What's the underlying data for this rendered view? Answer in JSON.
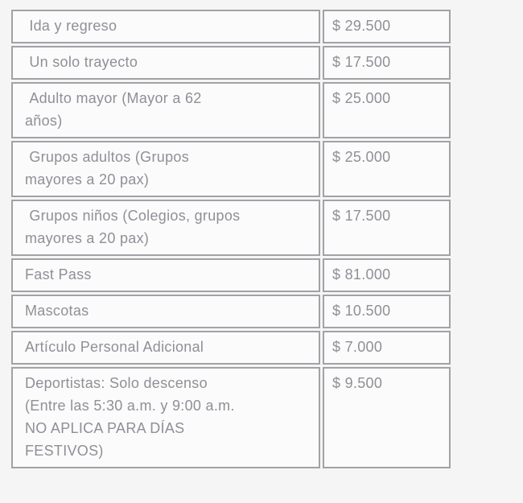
{
  "page": {
    "background_color": "#f5f5f6"
  },
  "fare_table": {
    "border_color": "#a2a2a6",
    "cell_background_color": "#fbfbfc",
    "text_color": "#8f8f96",
    "rows": [
      {
        "label": " Ida y regreso",
        "price": "$ 29.500"
      },
      {
        "label": " Un solo trayecto",
        "price": "$ 17.500"
      },
      {
        "label": " Adulto mayor (Mayor a 62\naños)",
        "price": "$ 25.000"
      },
      {
        "label": " Grupos adultos (Grupos\nmayores a 20 pax)",
        "price": "$ 25.000"
      },
      {
        "label": " Grupos niños (Colegios, grupos\nmayores a 20 pax)",
        "price": "$ 17.500"
      },
      {
        "label": "Fast Pass",
        "price": "$ 81.000"
      },
      {
        "label": "Mascotas",
        "price": "$ 10.500"
      },
      {
        "label": "Artículo Personal Adicional",
        "price": "$ 7.000"
      },
      {
        "label": "Deportistas: Solo descenso\n(Entre las 5:30 a.m. y 9:00 a.m.\nNO APLICA PARA DÍAS\nFESTIVOS)",
        "price": "$ 9.500"
      }
    ]
  },
  "chart_data": {
    "type": "table",
    "title": "",
    "columns": [],
    "rows": [
      [
        "Ida y regreso",
        "$ 29.500"
      ],
      [
        "Un solo trayecto",
        "$ 17.500"
      ],
      [
        "Adulto mayor (Mayor a 62 años)",
        "$ 25.000"
      ],
      [
        "Grupos adultos (Grupos mayores a 20 pax)",
        "$ 25.000"
      ],
      [
        "Grupos niños (Colegios, grupos mayores a 20 pax)",
        "$ 17.500"
      ],
      [
        "Fast Pass",
        "$ 81.000"
      ],
      [
        "Mascotas",
        "$ 10.500"
      ],
      [
        "Artículo Personal Adicional",
        "$ 7.000"
      ],
      [
        "Deportistas: Solo descenso (Entre las 5:30 a.m. y 9:00 a.m. NO APLICA PARA DÍAS FESTIVOS)",
        "$ 9.500"
      ]
    ],
    "prices_numeric_cop": [
      29500,
      17500,
      25000,
      25000,
      17500,
      81000,
      10500,
      7000,
      9500
    ]
  }
}
